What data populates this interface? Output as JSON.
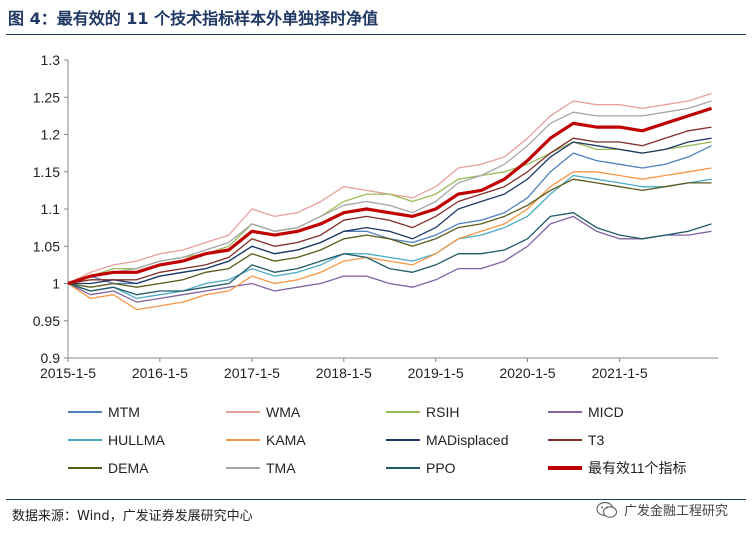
{
  "header": {
    "title": "图 4：最有效的 11 个技术指标样本外单独择时净值"
  },
  "footer": {
    "source": "数据来源：Wind，广发证券发展研究中心",
    "watermark": "广发金融工程研究"
  },
  "colors": {
    "MTM": "#4f81bd",
    "WMA": "#e6a09b",
    "RSIH": "#9bbb59",
    "MICD": "#8064a2",
    "HULLMA": "#4bacc6",
    "KAMA": "#f79646",
    "MADisplaced": "#1f3864",
    "T3": "#7f2f2a",
    "DEMA": "#5a5a1a",
    "TMA": "#a6a6a6",
    "PPO": "#215968",
    "best": "#c00000"
  },
  "chart_data": {
    "type": "line",
    "title": "",
    "xlabel": "",
    "ylabel": "",
    "ylim": [
      0.9,
      1.3
    ],
    "xlim": [
      "2015-01-05",
      "2022-01-31"
    ],
    "yticks": [
      "0.9",
      "0.95",
      "1",
      "1.05",
      "1.1",
      "1.15",
      "1.2",
      "1.25",
      "1.3"
    ],
    "xticks": [
      "2015-1-5",
      "2016-1-5",
      "2017-1-5",
      "2018-1-5",
      "2019-1-5",
      "2020-1-5",
      "2021-1-5"
    ],
    "x": [
      "2015-01-05",
      "2015-04-05",
      "2015-07-05",
      "2015-10-05",
      "2016-01-05",
      "2016-04-05",
      "2016-07-05",
      "2016-10-05",
      "2017-01-05",
      "2017-04-05",
      "2017-07-05",
      "2017-10-05",
      "2018-01-05",
      "2018-04-05",
      "2018-07-05",
      "2018-10-05",
      "2019-01-05",
      "2019-04-05",
      "2019-07-05",
      "2019-10-05",
      "2020-01-05",
      "2020-04-05",
      "2020-07-05",
      "2020-10-05",
      "2021-01-05",
      "2021-04-05",
      "2021-07-05",
      "2021-10-05",
      "2022-01-05"
    ],
    "series": [
      {
        "name": "MTM",
        "values": [
          1.0,
          1.01,
          1.0,
          1.0,
          1.01,
          1.015,
          1.02,
          1.03,
          1.05,
          1.04,
          1.045,
          1.055,
          1.07,
          1.07,
          1.06,
          1.055,
          1.065,
          1.08,
          1.085,
          1.095,
          1.115,
          1.15,
          1.175,
          1.165,
          1.16,
          1.155,
          1.16,
          1.17,
          1.185
        ]
      },
      {
        "name": "WMA",
        "values": [
          1.0,
          1.015,
          1.025,
          1.03,
          1.04,
          1.045,
          1.055,
          1.065,
          1.1,
          1.09,
          1.095,
          1.11,
          1.13,
          1.125,
          1.12,
          1.115,
          1.13,
          1.155,
          1.16,
          1.17,
          1.195,
          1.225,
          1.245,
          1.24,
          1.24,
          1.235,
          1.24,
          1.245,
          1.255
        ]
      },
      {
        "name": "RSIH",
        "values": [
          1.0,
          1.01,
          1.02,
          1.02,
          1.03,
          1.035,
          1.04,
          1.05,
          1.08,
          1.07,
          1.075,
          1.09,
          1.11,
          1.12,
          1.12,
          1.11,
          1.12,
          1.14,
          1.145,
          1.15,
          1.16,
          1.175,
          1.19,
          1.18,
          1.18,
          1.175,
          1.18,
          1.185,
          1.19
        ]
      },
      {
        "name": "MICD",
        "values": [
          1.0,
          0.985,
          0.99,
          0.975,
          0.98,
          0.985,
          0.99,
          0.995,
          1.0,
          0.99,
          0.995,
          1.0,
          1.01,
          1.01,
          1.0,
          0.995,
          1.005,
          1.02,
          1.02,
          1.03,
          1.05,
          1.08,
          1.09,
          1.07,
          1.06,
          1.06,
          1.065,
          1.065,
          1.07
        ]
      },
      {
        "name": "HULLMA",
        "values": [
          1.0,
          0.99,
          0.995,
          0.98,
          0.985,
          0.99,
          1.0,
          1.005,
          1.02,
          1.01,
          1.015,
          1.025,
          1.04,
          1.04,
          1.035,
          1.03,
          1.04,
          1.06,
          1.065,
          1.075,
          1.09,
          1.12,
          1.145,
          1.14,
          1.135,
          1.13,
          1.13,
          1.135,
          1.14
        ]
      },
      {
        "name": "KAMA",
        "values": [
          1.0,
          0.98,
          0.985,
          0.965,
          0.97,
          0.975,
          0.985,
          0.99,
          1.01,
          1.0,
          1.005,
          1.015,
          1.03,
          1.035,
          1.03,
          1.025,
          1.04,
          1.06,
          1.07,
          1.08,
          1.1,
          1.13,
          1.15,
          1.15,
          1.145,
          1.14,
          1.145,
          1.15,
          1.155
        ]
      },
      {
        "name": "MADisplaced",
        "values": [
          1.0,
          1.0,
          1.005,
          1.0,
          1.01,
          1.015,
          1.02,
          1.03,
          1.05,
          1.04,
          1.045,
          1.055,
          1.07,
          1.075,
          1.07,
          1.06,
          1.075,
          1.1,
          1.11,
          1.12,
          1.14,
          1.17,
          1.19,
          1.185,
          1.18,
          1.175,
          1.18,
          1.19,
          1.195
        ]
      },
      {
        "name": "T3",
        "values": [
          1.0,
          1.005,
          1.005,
          1.005,
          1.015,
          1.02,
          1.025,
          1.035,
          1.06,
          1.05,
          1.055,
          1.065,
          1.085,
          1.09,
          1.085,
          1.075,
          1.09,
          1.11,
          1.12,
          1.13,
          1.15,
          1.175,
          1.195,
          1.19,
          1.19,
          1.185,
          1.195,
          1.205,
          1.21
        ]
      },
      {
        "name": "DEMA",
        "values": [
          1.0,
          0.995,
          1.0,
          0.995,
          1.0,
          1.005,
          1.015,
          1.02,
          1.04,
          1.03,
          1.035,
          1.045,
          1.06,
          1.065,
          1.06,
          1.05,
          1.06,
          1.075,
          1.08,
          1.09,
          1.105,
          1.125,
          1.14,
          1.135,
          1.13,
          1.125,
          1.13,
          1.135,
          1.135
        ]
      },
      {
        "name": "TMA",
        "values": [
          1.0,
          1.01,
          1.015,
          1.02,
          1.03,
          1.035,
          1.045,
          1.055,
          1.08,
          1.07,
          1.075,
          1.09,
          1.105,
          1.11,
          1.105,
          1.095,
          1.11,
          1.135,
          1.145,
          1.16,
          1.185,
          1.215,
          1.23,
          1.225,
          1.225,
          1.225,
          1.23,
          1.235,
          1.245
        ]
      },
      {
        "name": "PPO",
        "values": [
          1.0,
          0.99,
          0.995,
          0.985,
          0.99,
          0.99,
          0.995,
          1.0,
          1.025,
          1.015,
          1.02,
          1.03,
          1.04,
          1.035,
          1.02,
          1.015,
          1.025,
          1.04,
          1.04,
          1.045,
          1.06,
          1.09,
          1.095,
          1.075,
          1.065,
          1.06,
          1.065,
          1.07,
          1.08
        ]
      },
      {
        "name": "最有效11个指标",
        "values": [
          1.0,
          1.01,
          1.015,
          1.015,
          1.025,
          1.03,
          1.04,
          1.045,
          1.07,
          1.065,
          1.07,
          1.08,
          1.095,
          1.1,
          1.095,
          1.09,
          1.1,
          1.12,
          1.125,
          1.14,
          1.165,
          1.195,
          1.215,
          1.21,
          1.21,
          1.205,
          1.215,
          1.225,
          1.235
        ]
      }
    ],
    "legend": {
      "position": "bottom",
      "items": [
        {
          "label": "MTM",
          "key": "MTM"
        },
        {
          "label": "WMA",
          "key": "WMA"
        },
        {
          "label": "RSIH",
          "key": "RSIH"
        },
        {
          "label": "MICD",
          "key": "MICD"
        },
        {
          "label": "HULLMA",
          "key": "HULLMA"
        },
        {
          "label": "KAMA",
          "key": "KAMA"
        },
        {
          "label": "MADisplaced",
          "key": "MADisplaced"
        },
        {
          "label": "T3",
          "key": "T3"
        },
        {
          "label": "DEMA",
          "key": "DEMA"
        },
        {
          "label": "TMA",
          "key": "TMA"
        },
        {
          "label": "PPO",
          "key": "PPO"
        },
        {
          "label": "最有效11个指标",
          "key": "best"
        }
      ]
    }
  }
}
